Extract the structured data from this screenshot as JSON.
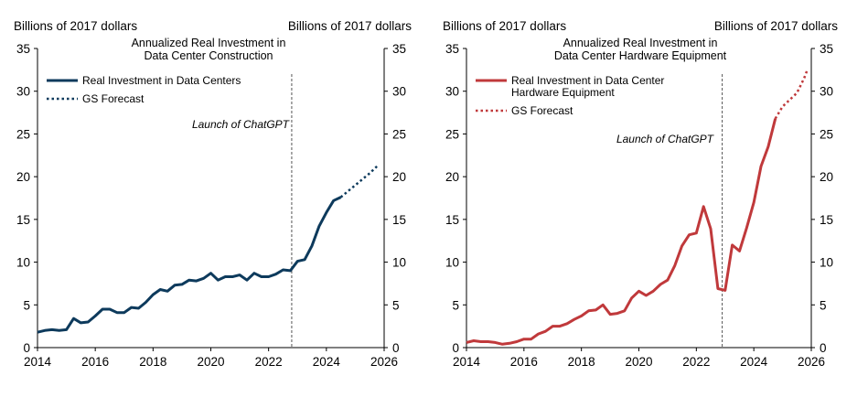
{
  "chart_data": [
    {
      "type": "line",
      "title": "Annualized Real Investment in Data Center Construction",
      "title_lines": [
        "Annualized Real Investment in",
        "Data Center Construction"
      ],
      "ylabel_left": "Billions of 2017 dollars",
      "ylabel_right": "Billions of 2017 dollars",
      "ylim": [
        0,
        35
      ],
      "yticks": [
        0,
        5,
        10,
        15,
        20,
        25,
        30,
        35
      ],
      "xlim": [
        2014,
        2026
      ],
      "xticks": [
        2014,
        2016,
        2018,
        2020,
        2022,
        2024,
        2026
      ],
      "color": "#0d3a5c",
      "event": {
        "x": 2022.8,
        "label": "Launch of ChatGPT"
      },
      "legend": {
        "position": "top-left",
        "entries": [
          "Real Investment in Data Centers",
          "GS Forecast"
        ]
      },
      "series": [
        {
          "name": "Real Investment in Data Centers",
          "style": "solid",
          "x": [
            2014.0,
            2014.25,
            2014.5,
            2014.75,
            2015.0,
            2015.25,
            2015.5,
            2015.75,
            2016.0,
            2016.25,
            2016.5,
            2016.75,
            2017.0,
            2017.25,
            2017.5,
            2017.75,
            2018.0,
            2018.25,
            2018.5,
            2018.75,
            2019.0,
            2019.25,
            2019.5,
            2019.75,
            2020.0,
            2020.25,
            2020.5,
            2020.75,
            2021.0,
            2021.25,
            2021.5,
            2021.75,
            2022.0,
            2022.25,
            2022.5,
            2022.75,
            2023.0,
            2023.25,
            2023.5,
            2023.75,
            2024.0,
            2024.25,
            2024.5
          ],
          "values": [
            1.8,
            2.0,
            2.1,
            2.0,
            2.1,
            3.4,
            2.9,
            3.0,
            3.7,
            4.5,
            4.5,
            4.1,
            4.1,
            4.7,
            4.6,
            5.3,
            6.2,
            6.8,
            6.6,
            7.3,
            7.4,
            7.9,
            7.8,
            8.1,
            8.7,
            7.9,
            8.3,
            8.3,
            8.5,
            7.9,
            8.7,
            8.3,
            8.3,
            8.6,
            9.1,
            9.0,
            10.1,
            10.3,
            11.9,
            14.2,
            15.8,
            17.2,
            17.6
          ]
        },
        {
          "name": "GS Forecast",
          "style": "dotted",
          "x": [
            2024.5,
            2024.75,
            2025.0,
            2025.25,
            2025.5,
            2025.75
          ],
          "values": [
            17.6,
            18.3,
            19.0,
            19.7,
            20.4,
            21.2
          ]
        }
      ]
    },
    {
      "type": "line",
      "title": "Annualized Real Investment in Data Center Hardware Equipment",
      "title_lines": [
        "Annualized Real Investment in",
        "Data Center Hardware Equipment"
      ],
      "ylabel_left": "Billions of 2017 dollars",
      "ylabel_right": "Billions of 2017 dollars",
      "ylim": [
        0,
        35
      ],
      "yticks": [
        0,
        5,
        10,
        15,
        20,
        25,
        30,
        35
      ],
      "xlim": [
        2014,
        2026
      ],
      "xticks": [
        2014,
        2016,
        2018,
        2020,
        2022,
        2024,
        2026
      ],
      "color": "#c0393b",
      "event": {
        "x": 2022.9,
        "label": "Launch of ChatGPT"
      },
      "legend": {
        "position": "top-left",
        "entries": [
          "Real Investment in Data Center Hardware Equipment",
          "GS Forecast"
        ],
        "entry_lines": [
          [
            "Real Investment in Data Center",
            "Hardware Equipment"
          ],
          [
            "GS Forecast"
          ]
        ]
      },
      "series": [
        {
          "name": "Real Investment in Data Center Hardware Equipment",
          "style": "solid",
          "x": [
            2014.0,
            2014.25,
            2014.5,
            2014.75,
            2015.0,
            2015.25,
            2015.5,
            2015.75,
            2016.0,
            2016.25,
            2016.5,
            2016.75,
            2017.0,
            2017.25,
            2017.5,
            2017.75,
            2018.0,
            2018.25,
            2018.5,
            2018.75,
            2019.0,
            2019.25,
            2019.5,
            2019.75,
            2020.0,
            2020.25,
            2020.5,
            2020.75,
            2021.0,
            2021.25,
            2021.5,
            2021.75,
            2022.0,
            2022.25,
            2022.5,
            2022.75,
            2023.0,
            2023.25,
            2023.5,
            2023.75,
            2024.0,
            2024.25,
            2024.5,
            2024.75
          ],
          "values": [
            0.6,
            0.8,
            0.7,
            0.7,
            0.6,
            0.4,
            0.5,
            0.7,
            1.0,
            1.0,
            1.6,
            1.9,
            2.5,
            2.5,
            2.8,
            3.3,
            3.7,
            4.3,
            4.4,
            5.0,
            3.9,
            4.0,
            4.3,
            5.8,
            6.6,
            6.1,
            6.6,
            7.4,
            7.9,
            9.6,
            11.9,
            13.2,
            13.4,
            16.5,
            13.9,
            6.9,
            6.7,
            12.0,
            11.3,
            14.0,
            17.0,
            21.2,
            23.5,
            26.8
          ]
        },
        {
          "name": "GS Forecast",
          "style": "dotted",
          "x": [
            2024.75,
            2025.0,
            2025.25,
            2025.5,
            2025.75,
            2025.85
          ],
          "values": [
            26.8,
            28.2,
            29.0,
            29.8,
            31.5,
            32.4
          ]
        }
      ]
    }
  ]
}
